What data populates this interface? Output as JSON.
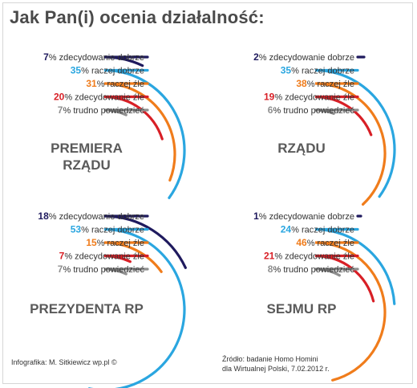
{
  "title": "Jak Pan(i) ocenia działalność:",
  "footer": {
    "credit": "Infografika: M. Sitkiewicz wp.pl ©",
    "source_line1": "Źródło: badanie Homo Homini",
    "source_line2": "dla Wirtualnej Polski, 7.02.2012 r."
  },
  "colors": {
    "zdecydowanie_dobrze": "#1f1a5e",
    "raczej_dobrze": "#2aa6e0",
    "raczej_zle": "#f07c1b",
    "zdecydowanie_zle": "#d81f26",
    "trudno_powiedziec": "#8f8f8f"
  },
  "chart_data": [
    {
      "type": "pie",
      "label_lines": [
        "PREMIERA",
        "RZĄDU"
      ],
      "categories": [
        "zdecydowanie dobrze",
        "raczej dobrze",
        "raczej źle",
        "zdecydowanie źle",
        "trudno powiedzieć"
      ],
      "values": [
        7,
        35,
        31,
        20,
        7
      ]
    },
    {
      "type": "pie",
      "label_lines": [
        "RZĄDU"
      ],
      "categories": [
        "zdecydowanie dobrze",
        "raczej dobrze",
        "raczej źle",
        "zdecydowanie źle",
        "trudno powiedzieć"
      ],
      "values": [
        2,
        35,
        38,
        19,
        6
      ]
    },
    {
      "type": "pie",
      "label_lines": [
        "PREZYDENTA RP"
      ],
      "categories": [
        "zdecydowanie dobrze",
        "raczej dobrze",
        "raczej źle",
        "zdecydowanie źle",
        "trudno powiedzieć"
      ],
      "values": [
        18,
        53,
        15,
        7,
        7
      ]
    },
    {
      "type": "pie",
      "label_lines": [
        "SEJMU RP"
      ],
      "categories": [
        "zdecydowanie dobrze",
        "raczej dobrze",
        "raczej źle",
        "zdecydowanie źle",
        "trudno powiedzieć"
      ],
      "values": [
        1,
        24,
        46,
        21,
        8
      ]
    }
  ]
}
